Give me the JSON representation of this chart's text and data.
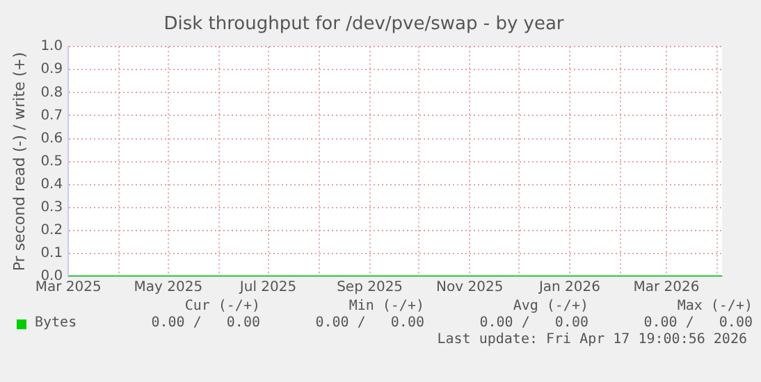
{
  "chart_data": {
    "type": "line",
    "title": "Disk throughput for /dev/pve/swap - by year",
    "ylabel": "Pr second read (-) / write (+)",
    "x": [
      "2025-03-01",
      "2025-05-01",
      "2025-07-01",
      "2025-09-01",
      "2025-11-01",
      "2026-01-01",
      "2026-03-01",
      "2026-04-04"
    ],
    "series": [
      {
        "name": "Bytes",
        "color": "#00cc00",
        "values": [
          0,
          0,
          0,
          0,
          0,
          0,
          0,
          0
        ]
      }
    ],
    "xlim": [
      "2025-03-01",
      "2026-04-04"
    ],
    "xticks": [
      {
        "value": "2025-03-01",
        "label": "Mar 2025"
      },
      {
        "value": "2025-04-01",
        "label": null
      },
      {
        "value": "2025-05-01",
        "label": "May 2025"
      },
      {
        "value": "2025-06-01",
        "label": null
      },
      {
        "value": "2025-07-01",
        "label": "Jul 2025"
      },
      {
        "value": "2025-08-01",
        "label": null
      },
      {
        "value": "2025-09-01",
        "label": "Sep 2025"
      },
      {
        "value": "2025-10-01",
        "label": null
      },
      {
        "value": "2025-11-01",
        "label": "Nov 2025"
      },
      {
        "value": "2025-12-01",
        "label": null
      },
      {
        "value": "2026-01-01",
        "label": "Jan 2026"
      },
      {
        "value": "2026-02-01",
        "label": null
      },
      {
        "value": "2026-03-01",
        "label": "Mar 2026"
      },
      {
        "value": "2026-04-01",
        "label": null
      }
    ],
    "ylim": [
      0,
      1
    ],
    "yticks": [
      {
        "value": 0,
        "label": "0.0"
      },
      {
        "value": 0.1,
        "label": "0.1"
      },
      {
        "value": 0.2,
        "label": "0.2"
      },
      {
        "value": 0.3,
        "label": "0.3"
      },
      {
        "value": 0.4,
        "label": "0.4"
      },
      {
        "value": 0.5,
        "label": "0.5"
      },
      {
        "value": 0.6,
        "label": "0.6"
      },
      {
        "value": 0.7,
        "label": "0.7"
      },
      {
        "value": 0.8,
        "label": "0.8"
      },
      {
        "value": 0.9,
        "label": "0.9"
      },
      {
        "value": 1,
        "label": "1.0"
      }
    ],
    "grid": true,
    "legend": "bottom",
    "marker": "none",
    "line_style": "solid",
    "annotations": [
      "Cur (-/+)",
      "Min (-/+)",
      "Avg (-/+)",
      "Max (-/+)",
      "0.00 /   0.00",
      "0.00 /   0.00",
      "0.00 /   0.00",
      "0.00 /   0.00",
      "Last update: Fri Apr 17 19:00:56 2026"
    ]
  }
}
